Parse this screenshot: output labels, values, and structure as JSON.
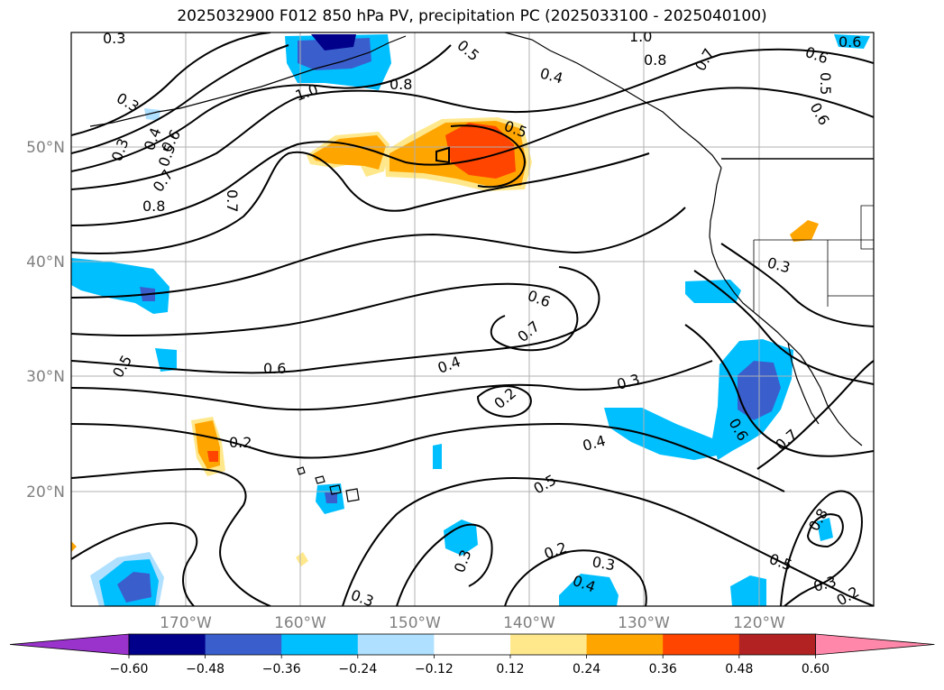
{
  "title": "2025032900 F012 850 hPa PV, precipitation PC (2025033100 - 2025040100)",
  "map": {
    "projection": "PlateCarree",
    "lon_range": [
      -180,
      -110
    ],
    "lat_range": [
      10,
      60
    ],
    "gridlines": true,
    "lat_ticks": [
      "50°N",
      "40°N",
      "30°N",
      "20°N"
    ],
    "lon_ticks": [
      "170°W",
      "160°W",
      "150°W",
      "140°W",
      "130°W",
      "120°W"
    ]
  },
  "pv_contour_labels": [
    "0.3",
    "0.3",
    "0.3",
    "0.4",
    "0.5",
    "0.6",
    "0.7",
    "0.8",
    "1.0",
    "0.8",
    "0.5",
    "1.0",
    "0.8",
    "0.4",
    "0.7",
    "0.6",
    "0.5",
    "0.6",
    "0.5",
    "0.7",
    "0.6",
    "0.7",
    "0.3",
    "0.6",
    "0.4",
    "0.2",
    "0.3",
    "0.6",
    "0.5",
    "0.2",
    "0.4",
    "0.5",
    "0.3",
    "0.2",
    "0.3",
    "0.4",
    "0.6",
    "0.7",
    "0.8",
    "0.5",
    "0.3",
    "0.2",
    "0.3"
  ],
  "colorbar": {
    "colors": [
      "#9933cc",
      "#00008b",
      "#3a5fcd",
      "#00bfff",
      "#afe0ff",
      "#ffffff",
      "#ffe88c",
      "#ffa500",
      "#ff4500",
      "#b22222",
      "#ff88aa"
    ],
    "tick_labels": [
      "−0.60",
      "−0.48",
      "−0.36",
      "−0.24",
      "−0.12",
      "0.12",
      "0.24",
      "0.36",
      "0.48",
      "0.60"
    ],
    "extend": "both"
  }
}
